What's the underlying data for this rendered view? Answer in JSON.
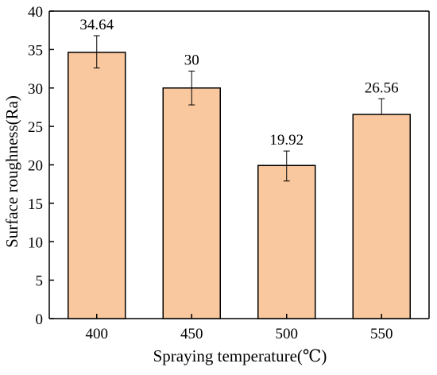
{
  "chart_data": {
    "type": "bar",
    "title": "",
    "xlabel": "Spraying temperature(℃)",
    "ylabel": "Surface roughness(Ra)",
    "categories": [
      "400",
      "450",
      "500",
      "550"
    ],
    "values": [
      34.64,
      30,
      19.92,
      26.56
    ],
    "data_labels": [
      "34.64",
      "30",
      "19.92",
      "26.56"
    ],
    "error_bars": [
      {
        "upper": 36.8,
        "lower": 32.6
      },
      {
        "upper": 32.2,
        "lower": 27.8
      },
      {
        "upper": 21.8,
        "lower": 17.9
      },
      {
        "upper": 28.6,
        "lower": 26.56
      }
    ],
    "ylim": [
      0,
      40
    ],
    "yticks": [
      0,
      5,
      10,
      15,
      20,
      25,
      30,
      35,
      40
    ],
    "grid": false,
    "legend": "none",
    "colors": {
      "bar_fill": "#FAC89E",
      "bar_stroke": "#000000",
      "axis": "#000000"
    }
  }
}
